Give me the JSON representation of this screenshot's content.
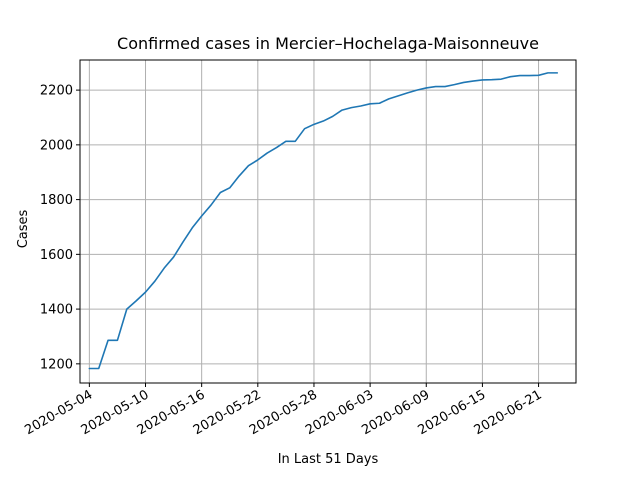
{
  "chart_data": {
    "type": "line",
    "title": "Confirmed cases in Mercier–Hochelaga-Maisonneuve",
    "xlabel": "In Last 51 Days",
    "ylabel": "Cases",
    "xlim": [
      "2020-05-03",
      "2020-06-25"
    ],
    "ylim": [
      1130,
      2310
    ],
    "grid": true,
    "x_ticks": [
      "2020-05-04",
      "2020-05-10",
      "2020-05-16",
      "2020-05-22",
      "2020-05-28",
      "2020-06-03",
      "2020-06-09",
      "2020-06-15",
      "2020-06-21"
    ],
    "y_ticks": [
      1200,
      1400,
      1600,
      1800,
      2000,
      2200
    ],
    "series_color": "#1f77b4",
    "x": [
      "2020-05-04",
      "2020-05-05",
      "2020-05-06",
      "2020-05-07",
      "2020-05-08",
      "2020-05-09",
      "2020-05-10",
      "2020-05-11",
      "2020-05-12",
      "2020-05-13",
      "2020-05-14",
      "2020-05-15",
      "2020-05-16",
      "2020-05-17",
      "2020-05-18",
      "2020-05-19",
      "2020-05-20",
      "2020-05-21",
      "2020-05-22",
      "2020-05-23",
      "2020-05-24",
      "2020-05-25",
      "2020-05-26",
      "2020-05-27",
      "2020-05-28",
      "2020-05-29",
      "2020-05-30",
      "2020-05-31",
      "2020-06-01",
      "2020-06-02",
      "2020-06-03",
      "2020-06-04",
      "2020-06-05",
      "2020-06-06",
      "2020-06-07",
      "2020-06-08",
      "2020-06-09",
      "2020-06-10",
      "2020-06-11",
      "2020-06-12",
      "2020-06-13",
      "2020-06-14",
      "2020-06-15",
      "2020-06-16",
      "2020-06-17",
      "2020-06-18",
      "2020-06-19",
      "2020-06-20",
      "2020-06-21",
      "2020-06-22",
      "2020-06-23"
    ],
    "values": [
      1183,
      1183,
      1286,
      1286,
      1400,
      1430,
      1462,
      1502,
      1550,
      1590,
      1645,
      1697,
      1740,
      1780,
      1826,
      1843,
      1886,
      1924,
      1945,
      1970,
      1990,
      2013,
      2013,
      2059,
      2075,
      2087,
      2104,
      2127,
      2136,
      2142,
      2150,
      2152,
      2168,
      2179,
      2190,
      2200,
      2208,
      2213,
      2213,
      2220,
      2228,
      2233,
      2237,
      2238,
      2240,
      2249,
      2253,
      2253,
      2254,
      2263,
      2263
    ]
  }
}
